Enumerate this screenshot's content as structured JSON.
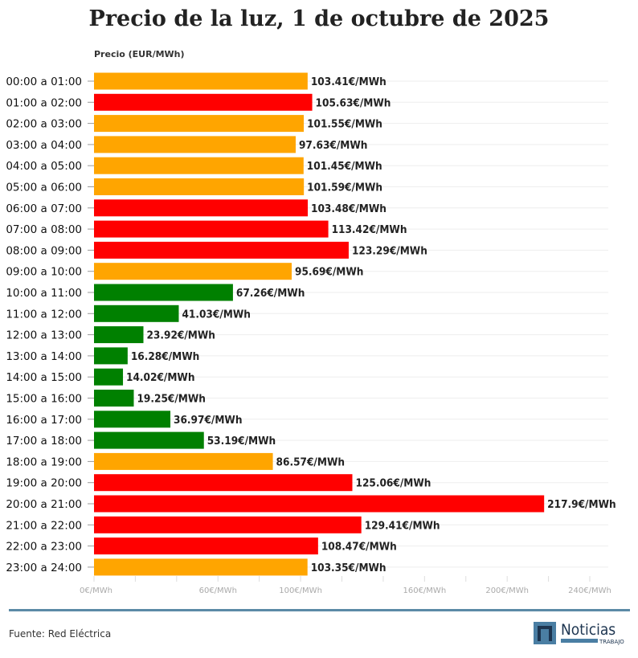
{
  "chart_data": {
    "type": "bar",
    "orientation": "horizontal",
    "title": "Precio de la luz, 1 de octubre de 2025",
    "ylabel": "Precio (EUR/MWh)",
    "xlim": [
      0,
      240
    ],
    "x_tick_labels": [
      {
        "value": 0,
        "label": "0€/MWh"
      },
      {
        "value": 60,
        "label": "60€/MWh"
      },
      {
        "value": 100,
        "label": "100€/MWh"
      },
      {
        "value": 160,
        "label": "160€/MWh"
      },
      {
        "value": 200,
        "label": "200€/MWh"
      },
      {
        "value": 240,
        "label": "240€/MWh"
      }
    ],
    "grid": true,
    "colors": {
      "high": "#ff0000",
      "medium": "#ffa500",
      "low": "#008000"
    },
    "categories": [
      "00:00 a 01:00",
      "01:00 a 02:00",
      "02:00 a 03:00",
      "03:00 a 04:00",
      "04:00 a 05:00",
      "05:00 a 06:00",
      "06:00 a 07:00",
      "07:00 a 08:00",
      "08:00 a 09:00",
      "09:00 a 10:00",
      "10:00 a 11:00",
      "11:00 a 12:00",
      "12:00 a 13:00",
      "13:00 a 14:00",
      "14:00 a 15:00",
      "15:00 a 16:00",
      "16:00 a 17:00",
      "17:00 a 18:00",
      "18:00 a 19:00",
      "19:00 a 20:00",
      "20:00 a 21:00",
      "21:00 a 22:00",
      "22:00 a 23:00",
      "23:00 a 24:00"
    ],
    "values": [
      103.41,
      105.63,
      101.55,
      97.63,
      101.45,
      101.59,
      103.48,
      113.42,
      123.29,
      95.69,
      67.26,
      41.03,
      23.92,
      16.28,
      14.02,
      19.25,
      36.97,
      53.19,
      86.57,
      125.06,
      217.9,
      129.41,
      108.47,
      103.35
    ],
    "levels": [
      "medium",
      "high",
      "medium",
      "medium",
      "medium",
      "medium",
      "high",
      "high",
      "high",
      "medium",
      "low",
      "low",
      "low",
      "low",
      "low",
      "low",
      "low",
      "low",
      "medium",
      "high",
      "high",
      "high",
      "high",
      "medium"
    ],
    "data_labels": [
      "103.41€/MWh",
      "105.63€/MWh",
      "101.55€/MWh",
      "97.63€/MWh",
      "101.45€/MWh",
      "101.59€/MWh",
      "103.48€/MWh",
      "113.42€/MWh",
      "123.29€/MWh",
      "95.69€/MWh",
      "67.26€/MWh",
      "41.03€/MWh",
      "23.92€/MWh",
      "16.28€/MWh",
      "14.02€/MWh",
      "19.25€/MWh",
      "36.97€/MWh",
      "53.19€/MWh",
      "86.57€/MWh",
      "125.06€/MWh",
      "217.9€/MWh",
      "129.41€/MWh",
      "108.47€/MWh",
      "103.35€/MWh"
    ]
  },
  "footer": {
    "source": "Fuente: Red Eléctrica",
    "logo_text": "Noticias",
    "logo_subtext": "TRABAJO"
  }
}
